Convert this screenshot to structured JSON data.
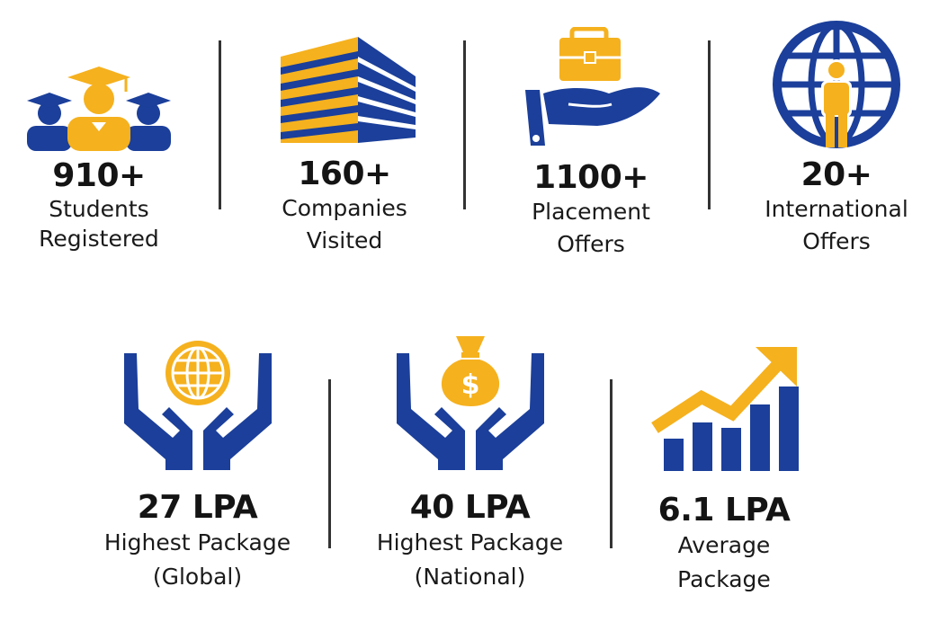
{
  "colors": {
    "blue": "#1b3f9a",
    "gold": "#f5b11e",
    "text": "#141414"
  },
  "stats_top": [
    {
      "icon": "graduates-icon",
      "value": "910+",
      "label_line1": "Students",
      "label_line2": "Registered"
    },
    {
      "icon": "company-building-icon",
      "value": "160+",
      "label_line1": "Companies",
      "label_line2": "Visited"
    },
    {
      "icon": "briefcase-hand-icon",
      "value": "1100+",
      "label_line1": "Placement",
      "label_line2": "Offers"
    },
    {
      "icon": "globe-person-icon",
      "value": "20+",
      "label_line1": "International",
      "label_line2": "Offers"
    }
  ],
  "stats_bottom": [
    {
      "icon": "hands-globe-icon",
      "value": "27 LPA",
      "label_line1": "Highest Package",
      "label_line2": "(Global)"
    },
    {
      "icon": "hands-money-bag-icon",
      "value": "40 LPA",
      "label_line1": "Highest Package",
      "label_line2": "(National)"
    },
    {
      "icon": "growth-chart-icon",
      "value": "6.1 LPA",
      "label_line1": "Average",
      "label_line2": "Package"
    }
  ]
}
